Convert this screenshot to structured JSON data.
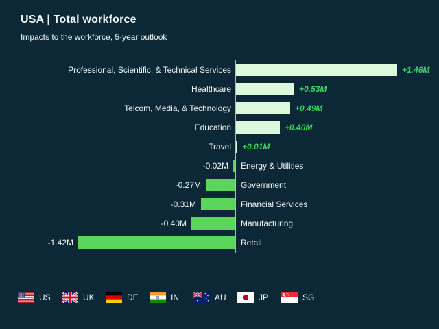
{
  "header": {
    "title": "USA | Total workforce",
    "subtitle": "Impacts to the workforce, 5-year outlook"
  },
  "chart_data": {
    "type": "bar",
    "orientation": "horizontal",
    "diverging": true,
    "zero_baseline": true,
    "grid": false,
    "title": "USA | Total workforce",
    "subtitle": "Impacts to the workforce, 5-year outlook",
    "unit": "millions of workers (M)",
    "xlim": [
      -1.5,
      1.5
    ],
    "categories": [
      "Professional, Scientific, & Technical Services",
      "Healthcare",
      "Telcom, Media, & Technology",
      "Education",
      "Travel",
      "Energy & Utilities",
      "Government",
      "Financial Services",
      "Manufacturing",
      "Retail"
    ],
    "values": [
      1.46,
      0.53,
      0.49,
      0.4,
      0.01,
      -0.02,
      -0.27,
      -0.31,
      -0.4,
      -1.42
    ],
    "value_labels": [
      "+1.46M",
      "+0.53M",
      "+0.49M",
      "+0.40M",
      "+0.01M",
      "-0.02M",
      "-0.27M",
      "-0.31M",
      "-0.40M",
      "-1.42M"
    ]
  },
  "footer": {
    "countries": [
      {
        "code": "us",
        "label": "US"
      },
      {
        "code": "uk",
        "label": "UK"
      },
      {
        "code": "de",
        "label": "DE"
      },
      {
        "code": "in",
        "label": "IN"
      },
      {
        "code": "au",
        "label": "AU"
      },
      {
        "code": "jp",
        "label": "JP"
      },
      {
        "code": "sg",
        "label": "SG"
      }
    ]
  },
  "theme": {
    "background": "#0c2836",
    "text_color": "#eef4f3",
    "positive_bar_color": "#dcf8dd",
    "negative_bar_color": "#5bd55b",
    "positive_value_color": "#3ed162",
    "negative_value_color": "#eef4f3",
    "axis_line_color": "#c7d3d6"
  }
}
